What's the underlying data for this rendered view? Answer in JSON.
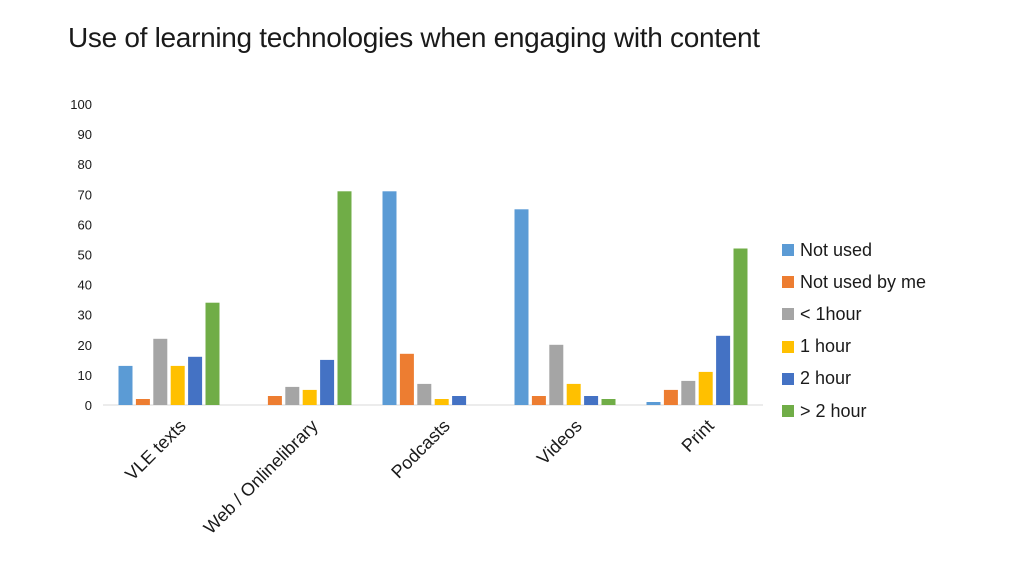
{
  "chart_data": {
    "type": "bar",
    "title": "Use of learning technologies when engaging with content",
    "xlabel": "",
    "ylabel": "",
    "ylim": [
      0,
      100
    ],
    "yticks": [
      0,
      10,
      20,
      30,
      40,
      50,
      60,
      70,
      80,
      90,
      100
    ],
    "grid": false,
    "legend_position": "right",
    "categories": [
      "VLE texts",
      "Web / Onlinelibrary",
      "Podcasts",
      "Videos",
      "Print"
    ],
    "series": [
      {
        "name": "Not used",
        "color": "#5B9BD5",
        "values": [
          13,
          0,
          71,
          65,
          1
        ]
      },
      {
        "name": "Not used by me",
        "color": "#ED7D31",
        "values": [
          2,
          3,
          17,
          3,
          5
        ]
      },
      {
        "name": "< 1hour",
        "color": "#A5A5A5",
        "values": [
          22,
          6,
          7,
          20,
          8
        ]
      },
      {
        "name": "1 hour",
        "color": "#FFC000",
        "values": [
          13,
          5,
          2,
          7,
          11
        ]
      },
      {
        "name": "2 hour",
        "color": "#4472C4",
        "values": [
          16,
          15,
          3,
          3,
          23
        ]
      },
      {
        "name": "> 2 hour",
        "color": "#70AD47",
        "values": [
          34,
          71,
          0,
          2,
          52
        ]
      }
    ]
  }
}
